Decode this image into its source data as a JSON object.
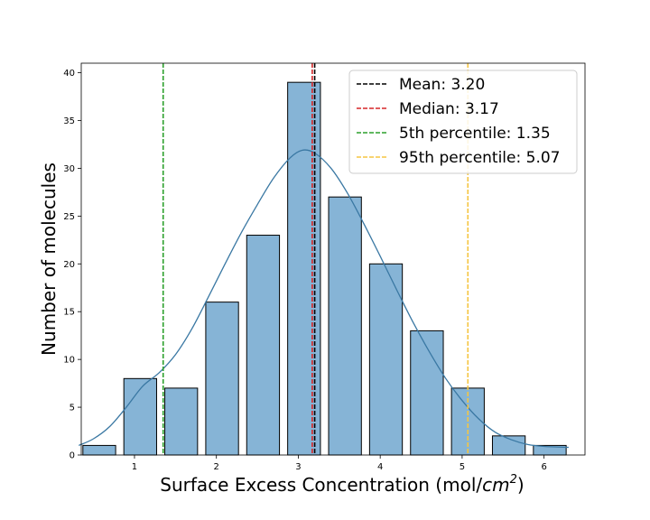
{
  "chart_data": {
    "type": "bar",
    "title": "",
    "xlabel": "Surface Excess Concentration (mol/",
    "xlabel_unit_base": "cm",
    "xlabel_unit_exp": "2",
    "xlabel_close": ")",
    "ylabel": "Number of molecules",
    "xlim": [
      0.35,
      6.5
    ],
    "ylim": [
      0,
      41
    ],
    "xticks": [
      "1",
      "2",
      "3",
      "4",
      "5",
      "6"
    ],
    "yticks": [
      "0",
      "5",
      "10",
      "15",
      "20",
      "25",
      "30",
      "35",
      "40"
    ],
    "bar_color": "#86b4d6",
    "bar_edge_color": "#000000",
    "kde_color": "#3a78a3",
    "bins": [
      {
        "center": 0.57,
        "value": 1
      },
      {
        "center": 1.07,
        "value": 8
      },
      {
        "center": 1.57,
        "value": 7
      },
      {
        "center": 2.07,
        "value": 16
      },
      {
        "center": 2.57,
        "value": 23
      },
      {
        "center": 3.07,
        "value": 39
      },
      {
        "center": 3.57,
        "value": 27
      },
      {
        "center": 4.07,
        "value": 20
      },
      {
        "center": 4.57,
        "value": 13
      },
      {
        "center": 5.07,
        "value": 7
      },
      {
        "center": 5.57,
        "value": 2
      },
      {
        "center": 6.07,
        "value": 1
      }
    ],
    "bin_width": 0.4,
    "kde": [
      [
        0.32,
        1.0
      ],
      [
        0.5,
        1.7
      ],
      [
        0.7,
        3.0
      ],
      [
        0.9,
        5.0
      ],
      [
        1.1,
        7.2
      ],
      [
        1.3,
        8.6
      ],
      [
        1.5,
        10.5
      ],
      [
        1.7,
        13.2
      ],
      [
        1.9,
        16.5
      ],
      [
        2.1,
        19.9
      ],
      [
        2.3,
        23.2
      ],
      [
        2.5,
        26.2
      ],
      [
        2.7,
        29.0
      ],
      [
        2.9,
        31.1
      ],
      [
        3.05,
        31.9
      ],
      [
        3.2,
        31.6
      ],
      [
        3.4,
        30.0
      ],
      [
        3.6,
        27.4
      ],
      [
        3.8,
        24.2
      ],
      [
        4.0,
        20.8
      ],
      [
        4.2,
        17.3
      ],
      [
        4.4,
        13.9
      ],
      [
        4.6,
        10.8
      ],
      [
        4.8,
        8.0
      ],
      [
        5.0,
        5.7
      ],
      [
        5.2,
        3.8
      ],
      [
        5.4,
        2.4
      ],
      [
        5.6,
        1.6
      ],
      [
        5.8,
        1.1
      ],
      [
        6.0,
        0.9
      ],
      [
        6.3,
        0.8
      ]
    ],
    "reference_lines": [
      {
        "name": "mean",
        "label": "Mean: 3.20",
        "value": 3.2,
        "color": "#000000"
      },
      {
        "name": "median",
        "label": "Median: 3.17",
        "value": 3.17,
        "color": "#d62728"
      },
      {
        "name": "5th-percentile",
        "label": "5th percentile: 1.35",
        "value": 1.35,
        "color": "#2ca02c"
      },
      {
        "name": "95th-percentile",
        "label": "95th percentile: 5.07",
        "value": 5.07,
        "color": "#f5c542"
      }
    ],
    "legend_position": "top-right"
  }
}
